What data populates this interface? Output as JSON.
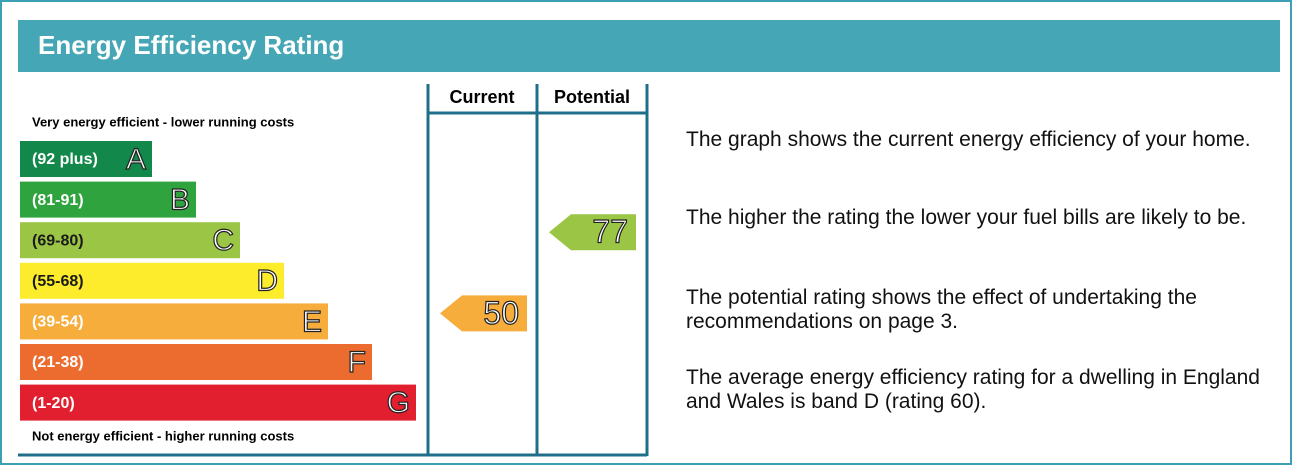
{
  "header": {
    "title": "Energy Efficiency Rating"
  },
  "columns": [
    "Current",
    "Potential"
  ],
  "top_label": "Very energy efficient - lower running costs",
  "bottom_label": "Not energy efficient - higher running costs",
  "bands": [
    {
      "range": "(92 plus)",
      "letter": "A",
      "color": "#12884a",
      "text_color": "#ffffff"
    },
    {
      "range": "(81-91)",
      "letter": "B",
      "color": "#2fa33d",
      "text_color": "#ffffff"
    },
    {
      "range": "(69-80)",
      "letter": "C",
      "color": "#9bc645",
      "text_color": "#1a1a1a"
    },
    {
      "range": "(55-68)",
      "letter": "D",
      "color": "#fcec2b",
      "text_color": "#1a1a1a"
    },
    {
      "range": "(39-54)",
      "letter": "E",
      "color": "#f6ad3b",
      "text_color": "#ffffff"
    },
    {
      "range": "(21-38)",
      "letter": "F",
      "color": "#ec6c2f",
      "text_color": "#ffffff"
    },
    {
      "range": "(1-20)",
      "letter": "G",
      "color": "#e11f2e",
      "text_color": "#ffffff"
    }
  ],
  "current": {
    "value": 50
  },
  "potential": {
    "value": 77
  },
  "paragraphs": [
    "The graph shows the current energy efficiency of your home.",
    "The higher the rating the lower your fuel bills are likely to be.",
    "The potential rating shows the effect of undertaking the recommendations on page 3.",
    "The average energy efficiency rating for a dwelling in England and Wales is band D (rating 60)."
  ]
}
